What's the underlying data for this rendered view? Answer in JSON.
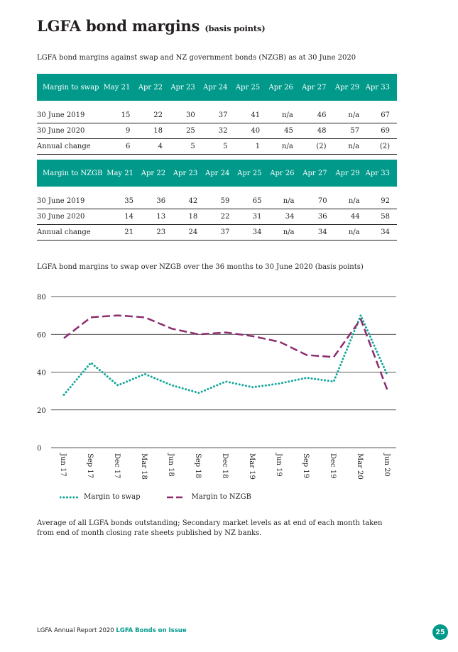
{
  "page": {
    "title": "LGFA bond margins",
    "title_unit": "(basis points)",
    "subtitle": "LGFA bond margins against swap and NZ government bonds (NZGB) as at 30 June 2020"
  },
  "colors": {
    "teal": "#00998a",
    "purple": "#8b2c6e",
    "swap_line": "#13a79b"
  },
  "tables": [
    {
      "headers": [
        "Margin to swap",
        "May 21",
        "Apr 22",
        "Apr 23",
        "Apr 24",
        "Apr 25",
        "Apr 26",
        "Apr 27",
        "Apr 29",
        "Apr 33"
      ],
      "rows": [
        [
          "30 June 2019",
          "15",
          "22",
          "30",
          "37",
          "41",
          "n/a",
          "46",
          "n/a",
          "67"
        ],
        [
          "30 June 2020",
          "9",
          "18",
          "25",
          "32",
          "40",
          "45",
          "48",
          "57",
          "69"
        ],
        [
          "Annual change",
          "6",
          "4",
          "5",
          "5",
          "1",
          "n/a",
          "(2)",
          "n/a",
          "(2)"
        ]
      ]
    },
    {
      "headers": [
        "Margin to NZGB",
        "May 21",
        "Apr 22",
        "Apr 23",
        "Apr 24",
        "Apr 25",
        "Apr 26",
        "Apr 27",
        "Apr 29",
        "Apr 33"
      ],
      "rows": [
        [
          "30 June 2019",
          "35",
          "36",
          "42",
          "59",
          "65",
          "n/a",
          "70",
          "n/a",
          "92"
        ],
        [
          "30 June 2020",
          "14",
          "13",
          "18",
          "22",
          "31",
          "34",
          "36",
          "44",
          "58"
        ],
        [
          "Annual change",
          "21",
          "23",
          "24",
          "37",
          "34",
          "n/a",
          "34",
          "n/a",
          "34"
        ]
      ]
    }
  ],
  "chart_data": {
    "type": "line",
    "title": "LGFA bond margins to swap over NZGB over the 36 months to 30 June 2020 (basis points)",
    "xlabel": "",
    "ylabel": "",
    "x": [
      "Jun 17",
      "Sep 17",
      "Dec 17",
      "Mar 18",
      "Jun 18",
      "Sep 18",
      "Dec 18",
      "Mar 19",
      "Jun 19",
      "Sep 19",
      "Dec 19",
      "Mar 20",
      "Jun 20"
    ],
    "ylim": [
      0,
      80
    ],
    "yticks": [
      0,
      20,
      40,
      60,
      80
    ],
    "grid": true,
    "legend_position": "bottom-left",
    "series": [
      {
        "name": "Margin to swap",
        "style": "dotted",
        "color": "#13a79b",
        "values": [
          28,
          45,
          33,
          39,
          33,
          29,
          35,
          32,
          34,
          37,
          35,
          70,
          38
        ]
      },
      {
        "name": "Margin to NZGB",
        "style": "dashed",
        "color": "#8b2c6e",
        "values": [
          58,
          69,
          70,
          69,
          63,
          60,
          61,
          59,
          56,
          49,
          48,
          68,
          30
        ]
      }
    ]
  },
  "note": "Average of all LGFA bonds outstanding; Secondary market levels as at end of each month taken from end of month closing rate sheets published by NZ banks.",
  "footer": {
    "text": "LGFA Annual Report 2020",
    "section": "LGFA Bonds on Issue",
    "page_number": "25"
  }
}
